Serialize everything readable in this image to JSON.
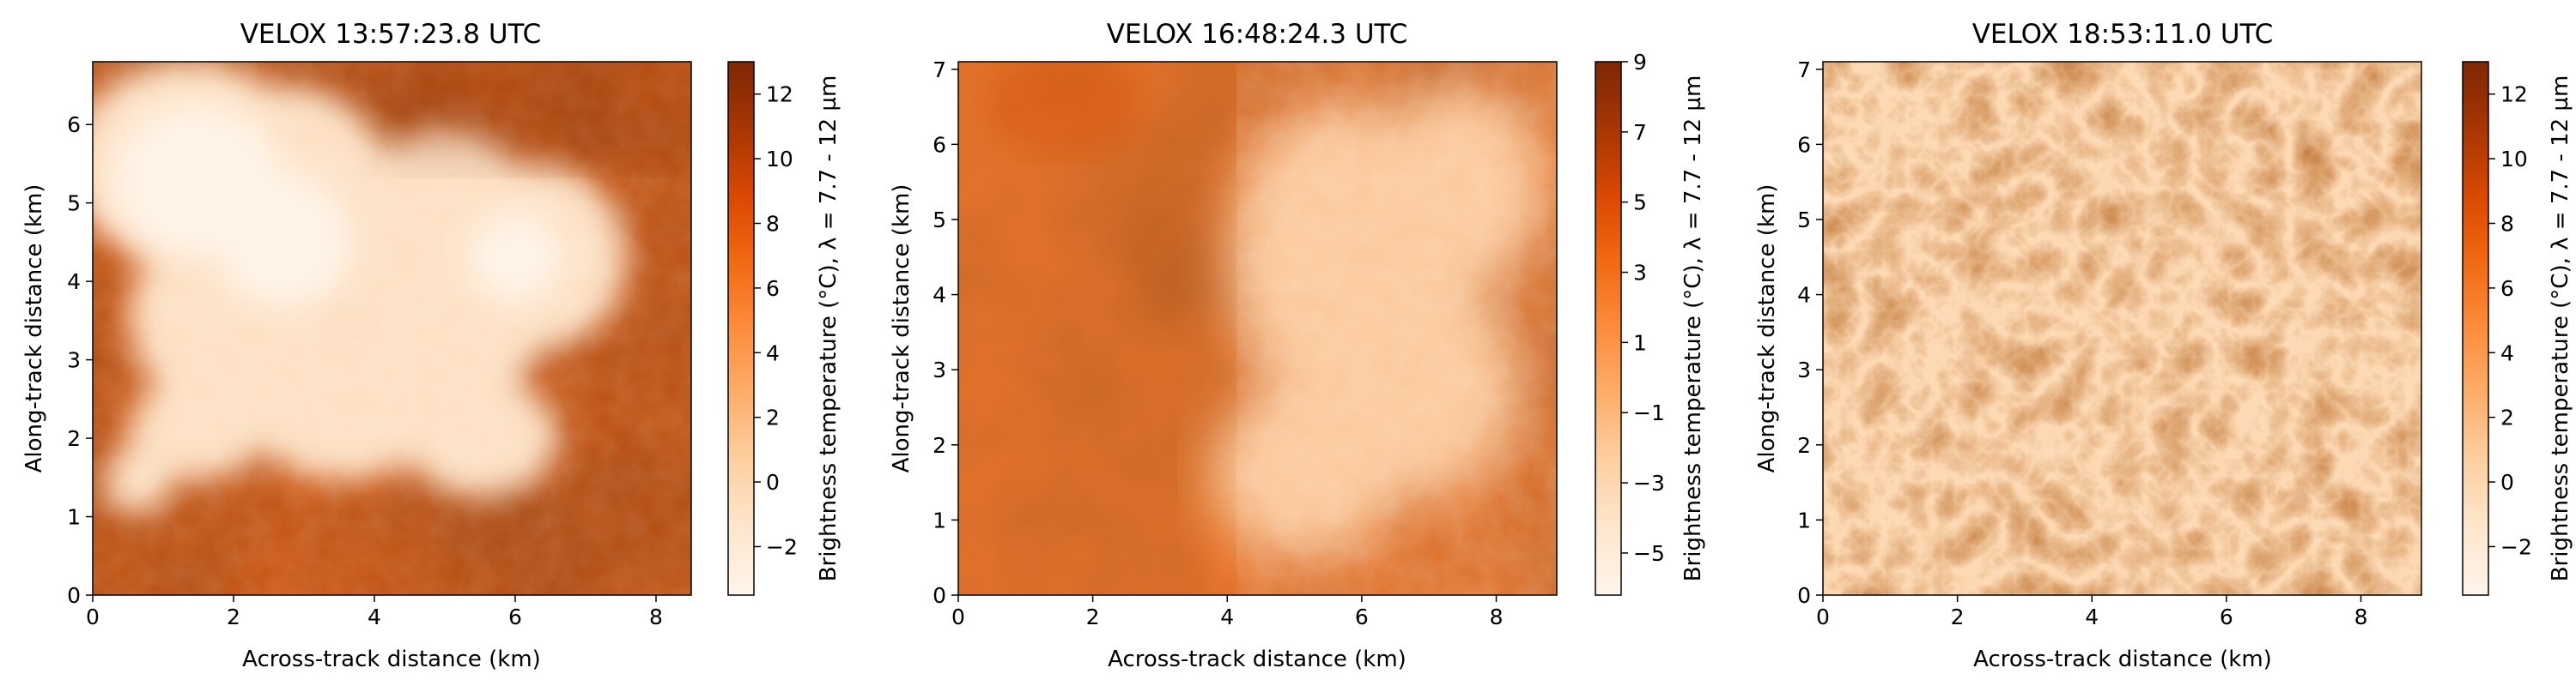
{
  "chart_data": [
    {
      "type": "heatmap",
      "title": "VELOX 13:57:23.8 UTC",
      "xlabel": "Across-track distance (km)",
      "ylabel": "Along-track distance (km)",
      "xlim": [
        0,
        8.5
      ],
      "ylim": [
        0,
        6.8
      ],
      "xticks": [
        "0",
        "2",
        "4",
        "6",
        "8"
      ],
      "yticks": [
        "0",
        "1",
        "2",
        "3",
        "4",
        "5",
        "6"
      ],
      "colorbar": {
        "label": "Brightness temperature (°C), λ = 7.7 - 12 µm",
        "range": [
          -3.5,
          13
        ],
        "ticks": [
          "−2",
          "0",
          "2",
          "4",
          "6",
          "8",
          "10",
          "12"
        ],
        "colormap": "Oranges"
      },
      "pattern": "large bright cloud mass in upper-left, warm sea surface lower and right"
    },
    {
      "type": "heatmap",
      "title": "VELOX 16:48:24.3 UTC",
      "xlabel": "Across-track distance (km)",
      "ylabel": "Along-track distance (km)",
      "xlim": [
        0,
        8.9
      ],
      "ylim": [
        0,
        7.1
      ],
      "xticks": [
        "0",
        "2",
        "4",
        "6",
        "8"
      ],
      "yticks": [
        "0",
        "1",
        "2",
        "3",
        "4",
        "5",
        "6",
        "7"
      ],
      "colorbar": {
        "label": "Brightness temperature (°C), λ = 7.7 - 12 µm",
        "range": [
          -6.2,
          9
        ],
        "ticks": [
          "−5",
          "−3",
          "−1",
          "1",
          "3",
          "5",
          "7",
          "9"
        ],
        "colormap": "Oranges"
      },
      "pattern": "warm left half, field of small cumulus cells on right"
    },
    {
      "type": "heatmap",
      "title": "VELOX 18:53:11.0 UTC",
      "xlabel": "Across-track distance (km)",
      "ylabel": "Along-track distance (km)",
      "xlim": [
        0,
        8.9
      ],
      "ylim": [
        0,
        7.1
      ],
      "xticks": [
        "0",
        "2",
        "4",
        "6",
        "8"
      ],
      "yticks": [
        "0",
        "1",
        "2",
        "3",
        "4",
        "5",
        "6",
        "7"
      ],
      "colorbar": {
        "label": "Brightness temperature (°C), λ = 7.7 - 12 µm",
        "range": [
          -3.5,
          13
        ],
        "ticks": [
          "−2",
          "0",
          "2",
          "4",
          "6",
          "8",
          "10",
          "12"
        ],
        "colormap": "Oranges"
      },
      "pattern": "cellular network of cool cloud cells separated by warm lanes"
    }
  ],
  "colors": {
    "cmap": [
      "#fff5eb",
      "#fee6ce",
      "#fdd0a2",
      "#fdae6b",
      "#fd8d3c",
      "#f16913",
      "#d94801",
      "#a63603",
      "#7f2704"
    ]
  }
}
